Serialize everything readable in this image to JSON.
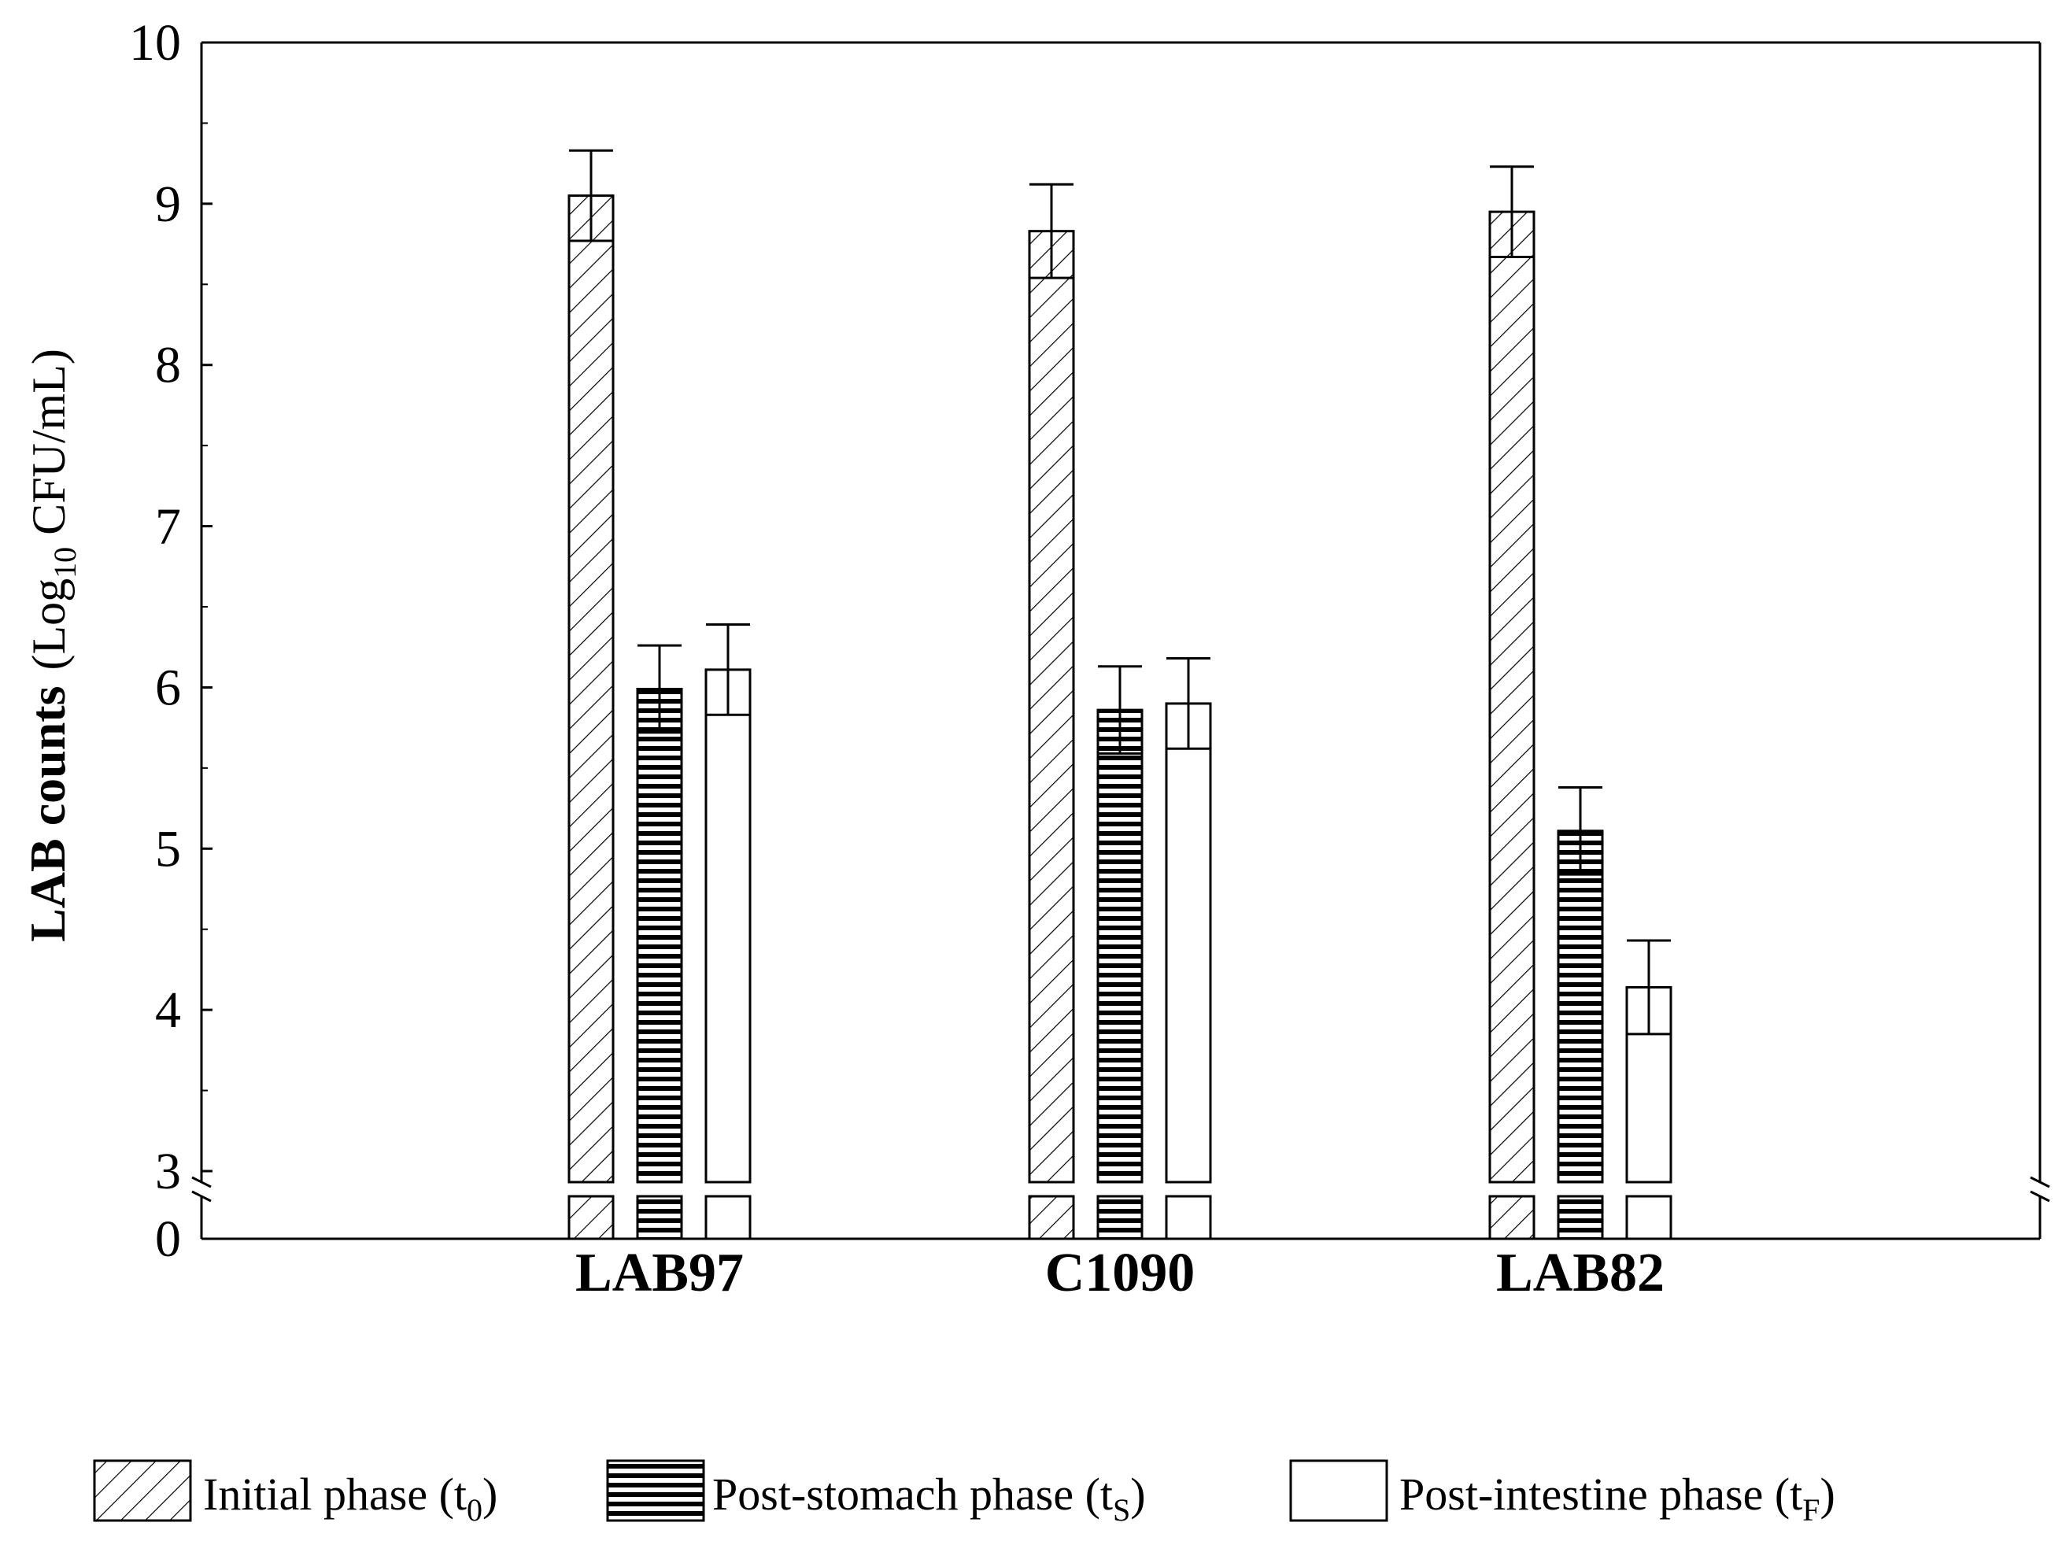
{
  "chart_data": {
    "type": "bar",
    "title": "",
    "xlabel": "",
    "ylabel": {
      "main": "LAB counts",
      "paren_open": "(Log",
      "sub": "10",
      "unit": " CFU/mL)"
    },
    "axis_break": {
      "lower_value": 0,
      "upper_start": 3
    },
    "ylim": [
      3,
      10
    ],
    "yticks": [
      {
        "value": 3,
        "label": "3"
      },
      {
        "value": 4,
        "label": "4"
      },
      {
        "value": 5,
        "label": "5"
      },
      {
        "value": 6,
        "label": "6"
      },
      {
        "value": 7,
        "label": "7"
      },
      {
        "value": 8,
        "label": "8"
      },
      {
        "value": 9,
        "label": "9"
      },
      {
        "value": 10,
        "label": "10"
      }
    ],
    "below_break_tick": {
      "value": 0,
      "label": "0"
    },
    "grid": false,
    "categories": [
      "LAB97",
      "C1090",
      "LAB82"
    ],
    "series": [
      {
        "name": "Initial phase",
        "legend_base": "Initial phase (t",
        "legend_sub": "0",
        "legend_close": ")",
        "pattern": "diagonal-hatch",
        "values": [
          9.05,
          8.83,
          8.95
        ],
        "errors": [
          0.28,
          0.29,
          0.28
        ]
      },
      {
        "name": "Post-stomach phase",
        "legend_base": "Post-stomach phase (t",
        "legend_sub": "S",
        "legend_close": ")",
        "pattern": "horizontal-stripes",
        "values": [
          5.99,
          5.86,
          5.11
        ],
        "errors": [
          0.27,
          0.27,
          0.27
        ]
      },
      {
        "name": "Post-intestine phase",
        "legend_base": "Post-intestine phase (t",
        "legend_sub": "F",
        "legend_close": ")",
        "pattern": "empty",
        "values": [
          6.11,
          5.9,
          4.14
        ],
        "errors": [
          0.28,
          0.28,
          0.29
        ]
      }
    ],
    "legend_position": "bottom"
  }
}
